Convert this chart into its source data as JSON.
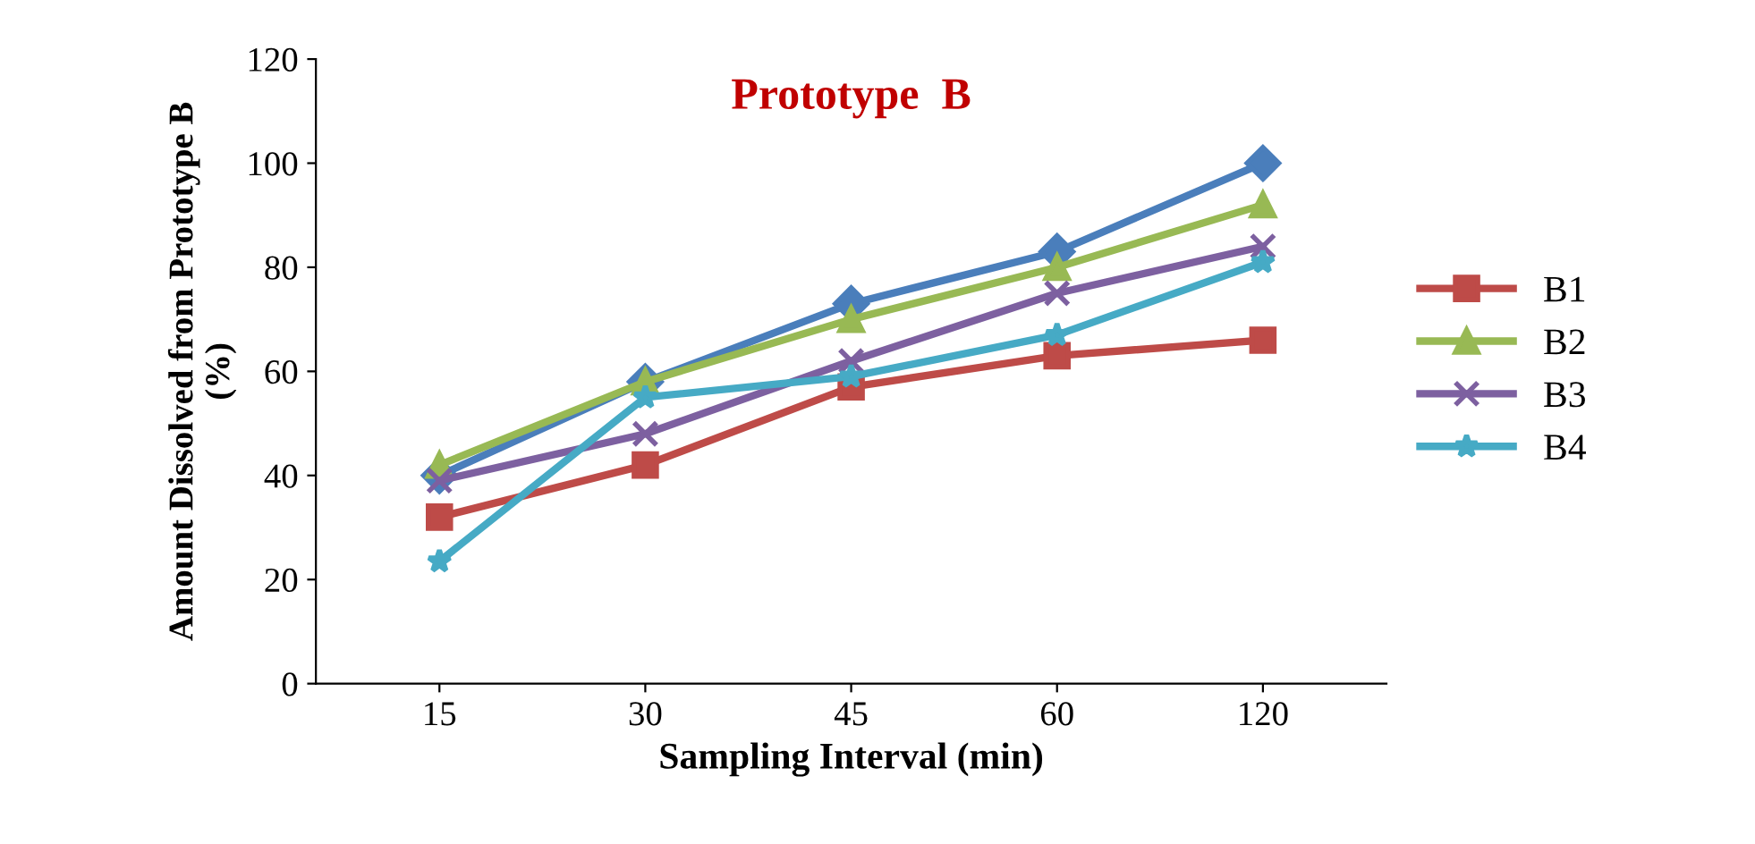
{
  "chart_data": {
    "type": "line",
    "title": "Prototype  B",
    "xlabel": "Sampling Interval (min)",
    "ylabel": "Amount Dissolved from Prototype B\n(%)",
    "categories": [
      "15",
      "30",
      "45",
      "60",
      "120"
    ],
    "series": [
      {
        "color": "#4a7ebb",
        "marker": "diamond",
        "values": [
          40,
          58,
          73,
          83,
          100
        ]
      },
      {
        "name": "B1",
        "color": "#be4b48",
        "marker": "square",
        "values": [
          32,
          42,
          57,
          63,
          66
        ]
      },
      {
        "name": "B2",
        "color": "#98b954",
        "marker": "triangle",
        "values": [
          42,
          58,
          70,
          80,
          92
        ]
      },
      {
        "name": "B3",
        "color": "#7d60a0",
        "marker": "cross",
        "values": [
          39,
          48,
          62,
          75,
          84
        ]
      },
      {
        "name": "B4",
        "color": "#46aac5",
        "marker": "star",
        "values": [
          23.5,
          55,
          59,
          67,
          81
        ]
      }
    ],
    "ylim": [
      0,
      120
    ],
    "yticks": [
      0,
      20,
      40,
      60,
      80,
      100,
      120
    ],
    "grid": false,
    "legend": "right"
  }
}
